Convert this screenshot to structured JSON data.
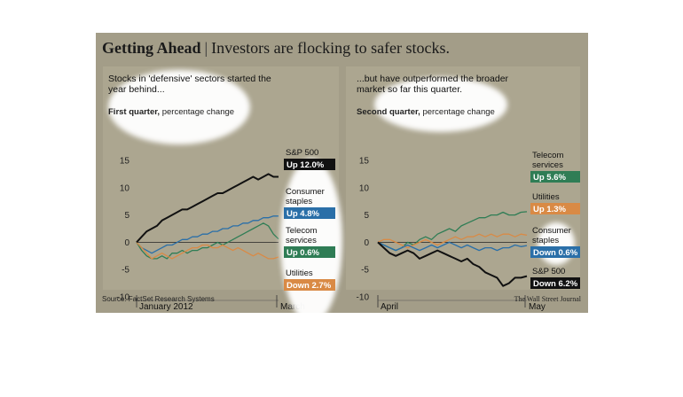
{
  "header": {
    "title_bold": "Getting Ahead",
    "separator": "|",
    "title_rest": "Investors are flocking to safer stocks."
  },
  "footer": {
    "source": "Source: FactSet Research Systems",
    "publisher": "The Wall Street Journal"
  },
  "colors": {
    "sp500": "#111111",
    "consumer_staples": "#2a6fa8",
    "telecom": "#2f7d55",
    "utilities": "#d98a45",
    "background": "#a39d88"
  },
  "chart_data": [
    {
      "type": "line",
      "subtitle": "Stocks in 'defensive' sectors started the year behind...",
      "unit_bold": "First quarter,",
      "unit_rest": "percentage change",
      "yticks": [
        15,
        10,
        5,
        0,
        -5,
        -10
      ],
      "ylim": [
        -10,
        15
      ],
      "xlabels": [
        "January 2012",
        "March"
      ],
      "series": [
        {
          "name": "S&P 500",
          "label": "Up 12.0%",
          "end": 12.0,
          "values": [
            0,
            1,
            2,
            2.5,
            3,
            4,
            4.5,
            5,
            5.5,
            6,
            6,
            6.5,
            7,
            7.5,
            8,
            8.5,
            9,
            9,
            9.5,
            10,
            10.5,
            11,
            11.5,
            12,
            11.5,
            12,
            12.5,
            12,
            12
          ]
        },
        {
          "name": "Consumer staples",
          "label": "Up 4.8%",
          "end": 4.8,
          "values": [
            0,
            -1,
            -1.5,
            -2,
            -1.5,
            -1,
            -0.5,
            -0.5,
            0,
            0.5,
            0.5,
            1,
            1,
            1.5,
            1.5,
            2,
            2,
            2.5,
            2.5,
            3,
            3,
            3.5,
            3.5,
            4,
            4,
            4.5,
            4.5,
            4.8,
            4.8
          ]
        },
        {
          "name": "Telecom services",
          "label": "Up 0.6%",
          "end": 0.6,
          "values": [
            0,
            -1.5,
            -2.5,
            -3,
            -3,
            -2.5,
            -3,
            -2,
            -2,
            -1.5,
            -2,
            -1.5,
            -1.5,
            -1,
            -1,
            -0.5,
            0,
            -0.5,
            0,
            0.5,
            1,
            1.5,
            2,
            2.5,
            3,
            3.5,
            3,
            1.5,
            0.6
          ]
        },
        {
          "name": "Utilities",
          "label": "Down 2.7%",
          "end": -2.7,
          "values": [
            0,
            -1,
            -2,
            -3,
            -2.5,
            -2,
            -2.5,
            -3,
            -2.5,
            -2,
            -1.5,
            -1,
            -1,
            -0.5,
            -0.5,
            -1,
            -1,
            -0.5,
            -1,
            -1.5,
            -1,
            -1.5,
            -2,
            -2.5,
            -2,
            -2.5,
            -3,
            -3,
            -2.7
          ]
        }
      ]
    },
    {
      "type": "line",
      "subtitle": "...but have outperformed the broader market so far this quarter.",
      "unit_bold": "Second quarter,",
      "unit_rest": "percentage change",
      "yticks": [
        15,
        10,
        5,
        0,
        -5,
        -10
      ],
      "ylim": [
        -10,
        15
      ],
      "xlabels": [
        "April",
        "May"
      ],
      "series": [
        {
          "name": "Telecom services",
          "label": "Up 5.6%",
          "end": 5.6,
          "values": [
            0,
            -0.5,
            -1,
            -1.5,
            -1,
            0,
            -0.5,
            0.5,
            1,
            0.5,
            1.5,
            2,
            2.5,
            2,
            3,
            3.5,
            4,
            4.5,
            4.5,
            5,
            5,
            5.5,
            5,
            5,
            5.5,
            5.6
          ]
        },
        {
          "name": "Utilities",
          "label": "Up 1.3%",
          "end": 1.3,
          "values": [
            0,
            0.5,
            0.5,
            0,
            -0.5,
            -1,
            -0.5,
            0,
            0.5,
            0,
            -0.5,
            0,
            0.5,
            1,
            0.5,
            1,
            1,
            1.5,
            1,
            1.5,
            1,
            1.5,
            1.5,
            1,
            1.5,
            1.3
          ]
        },
        {
          "name": "Consumer staples",
          "label": "Down 0.6%",
          "end": -0.6,
          "values": [
            0,
            -0.5,
            -1,
            -1.5,
            -1,
            -0.5,
            -1,
            -1.5,
            -1,
            -0.5,
            -1,
            -0.5,
            0,
            -0.5,
            -1,
            -0.5,
            -1,
            -1.5,
            -1,
            -1,
            -1.5,
            -1,
            -1,
            -0.5,
            -0.8,
            -0.6
          ]
        },
        {
          "name": "S&P 500",
          "label": "Down 6.2%",
          "end": -6.2,
          "values": [
            0,
            -1,
            -2,
            -2.5,
            -2,
            -1.5,
            -2,
            -3,
            -2.5,
            -2,
            -1.5,
            -2,
            -2.5,
            -3,
            -3.5,
            -3,
            -4,
            -4.5,
            -5.5,
            -6,
            -6.5,
            -8,
            -7.5,
            -6.5,
            -6.5,
            -6.2
          ]
        }
      ]
    }
  ]
}
